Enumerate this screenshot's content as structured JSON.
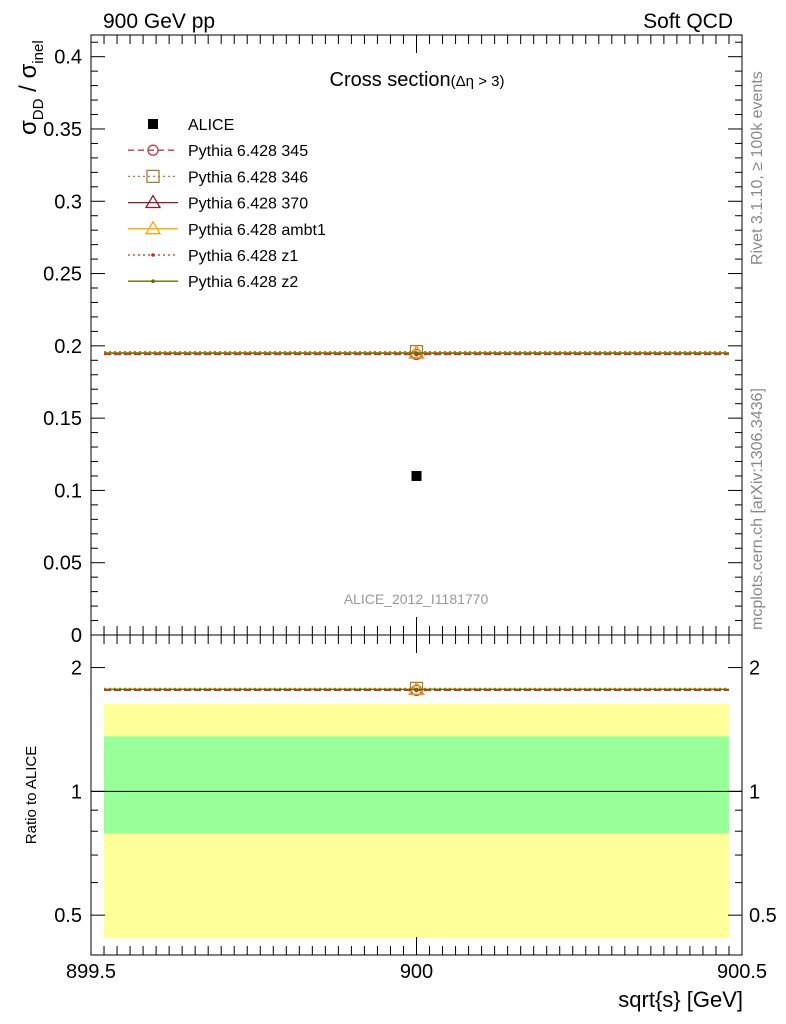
{
  "header": {
    "left": "900 GeV pp",
    "right": "Soft QCD"
  },
  "side": {
    "rivet": "Rivet 3.1.10, ≥ 100k events",
    "mcplots": "mcplots.cern.ch [arXiv:1306.3436]"
  },
  "chart_data": [
    {
      "type": "scatter",
      "title": "Cross section",
      "title_suffix": "(Δη > 3)",
      "ylabel": "σ_DD / σ_inel",
      "ylabel_parts": {
        "sigma": "σ",
        "sub1": "DD",
        "sep": " / ",
        "sub2": "inel"
      },
      "watermark": "ALICE_2012_I1181770",
      "xlim": [
        899.5,
        900.5
      ],
      "ylim": [
        0,
        0.415
      ],
      "yticks": [
        0,
        0.05,
        0.1,
        0.15,
        0.2,
        0.25,
        0.3,
        0.35,
        0.4
      ],
      "ytick_labels": [
        "0",
        "0.05",
        "0.1",
        "0.15",
        "0.2",
        "0.25",
        "0.3",
        "0.35",
        "0.4"
      ],
      "legend_position": "top-left",
      "series": [
        {
          "name": "ALICE",
          "x": [
            900
          ],
          "y": [
            0.11
          ],
          "color": "#000000",
          "marker": "square",
          "line": "none"
        },
        {
          "name": "Pythia 6.428 345",
          "x": [
            899.5,
            900.5
          ],
          "y": [
            0.194,
            0.194
          ],
          "color": "#c0394b",
          "marker": "circle",
          "line": "dashed"
        },
        {
          "name": "Pythia 6.428 346",
          "x": [
            899.5,
            900.5
          ],
          "y": [
            0.196,
            0.196
          ],
          "color": "#a08040",
          "marker": "square-open",
          "line": "dotted"
        },
        {
          "name": "Pythia 6.428 370",
          "x": [
            899.5,
            900.5
          ],
          "y": [
            0.195,
            0.195
          ],
          "color": "#8b1a2a",
          "marker": "triangle",
          "line": "solid"
        },
        {
          "name": "Pythia 6.428 ambt1",
          "x": [
            899.5,
            900.5
          ],
          "y": [
            0.195,
            0.195
          ],
          "color": "#ffa500",
          "marker": "triangle-open",
          "line": "solid"
        },
        {
          "name": "Pythia 6.428 z1",
          "x": [
            899.5,
            900.5
          ],
          "y": [
            0.194,
            0.194
          ],
          "color": "#cc2a1a",
          "marker": "dot",
          "line": "dotted"
        },
        {
          "name": "Pythia 6.428 z2",
          "x": [
            899.5,
            900.5
          ],
          "y": [
            0.195,
            0.195
          ],
          "color": "#6b6b00",
          "marker": "dot",
          "line": "solid"
        }
      ]
    },
    {
      "type": "scatter",
      "ylabel": "Ratio to ALICE",
      "xlabel": "sqrt{s} [GeV]",
      "xlim": [
        899.5,
        900.5
      ],
      "xticks": [
        899.5,
        900,
        900.5
      ],
      "xtick_labels": [
        "899.5",
        "900",
        "900.5"
      ],
      "ylim": [
        0.4,
        2.4
      ],
      "ytick_labels_right": [
        "0.5",
        "1",
        "2"
      ],
      "yticks_labeled": [
        0.5,
        1,
        2
      ],
      "bands": [
        {
          "name": "2-sigma",
          "low": 0.44,
          "high": 1.63,
          "color": "#ffff99"
        },
        {
          "name": "1-sigma",
          "low": 0.79,
          "high": 1.36,
          "color": "#99ff99"
        }
      ],
      "reference": 1,
      "series": [
        {
          "name": "Pythia 6.428 345",
          "y": [
            1.76,
            1.76
          ],
          "color": "#c0394b",
          "marker": "circle"
        },
        {
          "name": "Pythia 6.428 346",
          "y": [
            1.78,
            1.78
          ],
          "color": "#a08040",
          "marker": "square-open"
        },
        {
          "name": "Pythia 6.428 370",
          "y": [
            1.77,
            1.77
          ],
          "color": "#8b1a2a",
          "marker": "triangle"
        },
        {
          "name": "Pythia 6.428 ambt1",
          "y": [
            1.77,
            1.77
          ],
          "color": "#ffa500",
          "marker": "triangle-open"
        },
        {
          "name": "Pythia 6.428 z1",
          "y": [
            1.76,
            1.76
          ],
          "color": "#cc2a1a",
          "marker": "dot"
        },
        {
          "name": "Pythia 6.428 z2",
          "y": [
            1.77,
            1.77
          ],
          "color": "#6b6b00",
          "marker": "dot"
        }
      ]
    }
  ]
}
